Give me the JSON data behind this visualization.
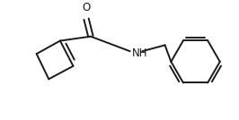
{
  "background_color": "#ffffff",
  "line_color": "#1a1a1a",
  "line_width": 1.4,
  "font_size": 8.5,
  "figsize": [
    2.66,
    1.34
  ],
  "dpi": 100
}
